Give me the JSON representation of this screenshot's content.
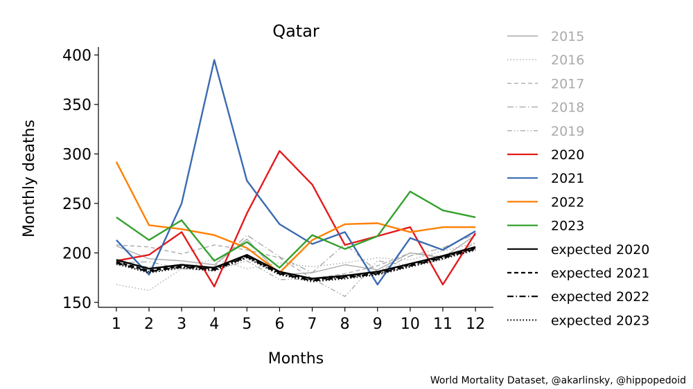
{
  "chart_data": {
    "type": "line",
    "title": "Qatar",
    "xlabel": "Months",
    "ylabel": "Monthly deaths",
    "x": [
      1,
      2,
      3,
      4,
      5,
      6,
      7,
      8,
      9,
      10,
      11,
      12
    ],
    "xlim": [
      0.45,
      12.55
    ],
    "ylim": [
      145,
      408
    ],
    "yticks": [
      150,
      200,
      250,
      300,
      350,
      400
    ],
    "grid": false,
    "legend_position": "right",
    "series": [
      {
        "name": "2015",
        "color": "#aaaaaa",
        "dash": "solid",
        "values": [
          207,
          194,
          192,
          188,
          214,
          178,
          180,
          188,
          183,
          200,
          195,
          218
        ]
      },
      {
        "name": "2016",
        "color": "#aaaaaa",
        "dash": "dotted",
        "values": [
          168,
          162,
          184,
          194,
          184,
          190,
          186,
          190,
          195,
          193,
          202,
          210
        ]
      },
      {
        "name": "2017",
        "color": "#aaaaaa",
        "dash": "dashed",
        "values": [
          208,
          206,
          199,
          208,
          203,
          195,
          174,
          179,
          187,
          200,
          196,
          206
        ]
      },
      {
        "name": "2018",
        "color": "#aaaaaa",
        "dash": "dashdot",
        "values": [
          190,
          191,
          184,
          186,
          218,
          196,
          180,
          209,
          181,
          197,
          205,
          219
        ]
      },
      {
        "name": "2019",
        "color": "#aaaaaa",
        "dash": "dashdotdot",
        "values": [
          188,
          186,
          184,
          182,
          192,
          173,
          174,
          156,
          192,
          187,
          193,
          210
        ]
      },
      {
        "name": "2020",
        "color": "#e31a1c",
        "dash": "solid",
        "values": [
          192,
          198,
          221,
          166,
          240,
          303,
          269,
          208,
          217,
          226,
          168,
          220
        ]
      },
      {
        "name": "2021",
        "color": "#3a6ab0",
        "dash": "solid",
        "values": [
          213,
          178,
          250,
          395,
          273,
          229,
          209,
          221,
          168,
          215,
          203,
          222
        ]
      },
      {
        "name": "2022",
        "color": "#ff7f00",
        "dash": "solid",
        "values": [
          292,
          228,
          224,
          218,
          205,
          180,
          213,
          229,
          230,
          221,
          226,
          226
        ]
      },
      {
        "name": "2023",
        "color": "#33a02c",
        "dash": "solid",
        "values": [
          236,
          213,
          233,
          192,
          211,
          185,
          218,
          204,
          217,
          262,
          243,
          236
        ]
      },
      {
        "name": "expected 2020",
        "color": "#000000",
        "dash": "solid",
        "values": [
          193,
          184,
          188,
          185,
          198,
          181,
          174,
          177,
          181,
          189,
          197,
          206
        ]
      },
      {
        "name": "expected 2021",
        "color": "#000000",
        "dash": "dashed",
        "values": [
          191,
          182,
          187,
          184,
          197,
          180,
          173,
          176,
          180,
          188,
          196,
          205
        ]
      },
      {
        "name": "expected 2022",
        "color": "#000000",
        "dash": "dashdot",
        "values": [
          190,
          181,
          186,
          183,
          196,
          179,
          172,
          175,
          179,
          187,
          195,
          204
        ]
      },
      {
        "name": "expected 2023",
        "color": "#000000",
        "dash": "dotted",
        "values": [
          189,
          180,
          185,
          182,
          195,
          178,
          171,
          174,
          178,
          186,
          194,
          203
        ]
      }
    ],
    "legend_colors": {
      "faded": "#aaaaaa",
      "normal": "#000000"
    }
  },
  "credit": "World Mortality Dataset, @akarlinsky, @hippopedoid"
}
